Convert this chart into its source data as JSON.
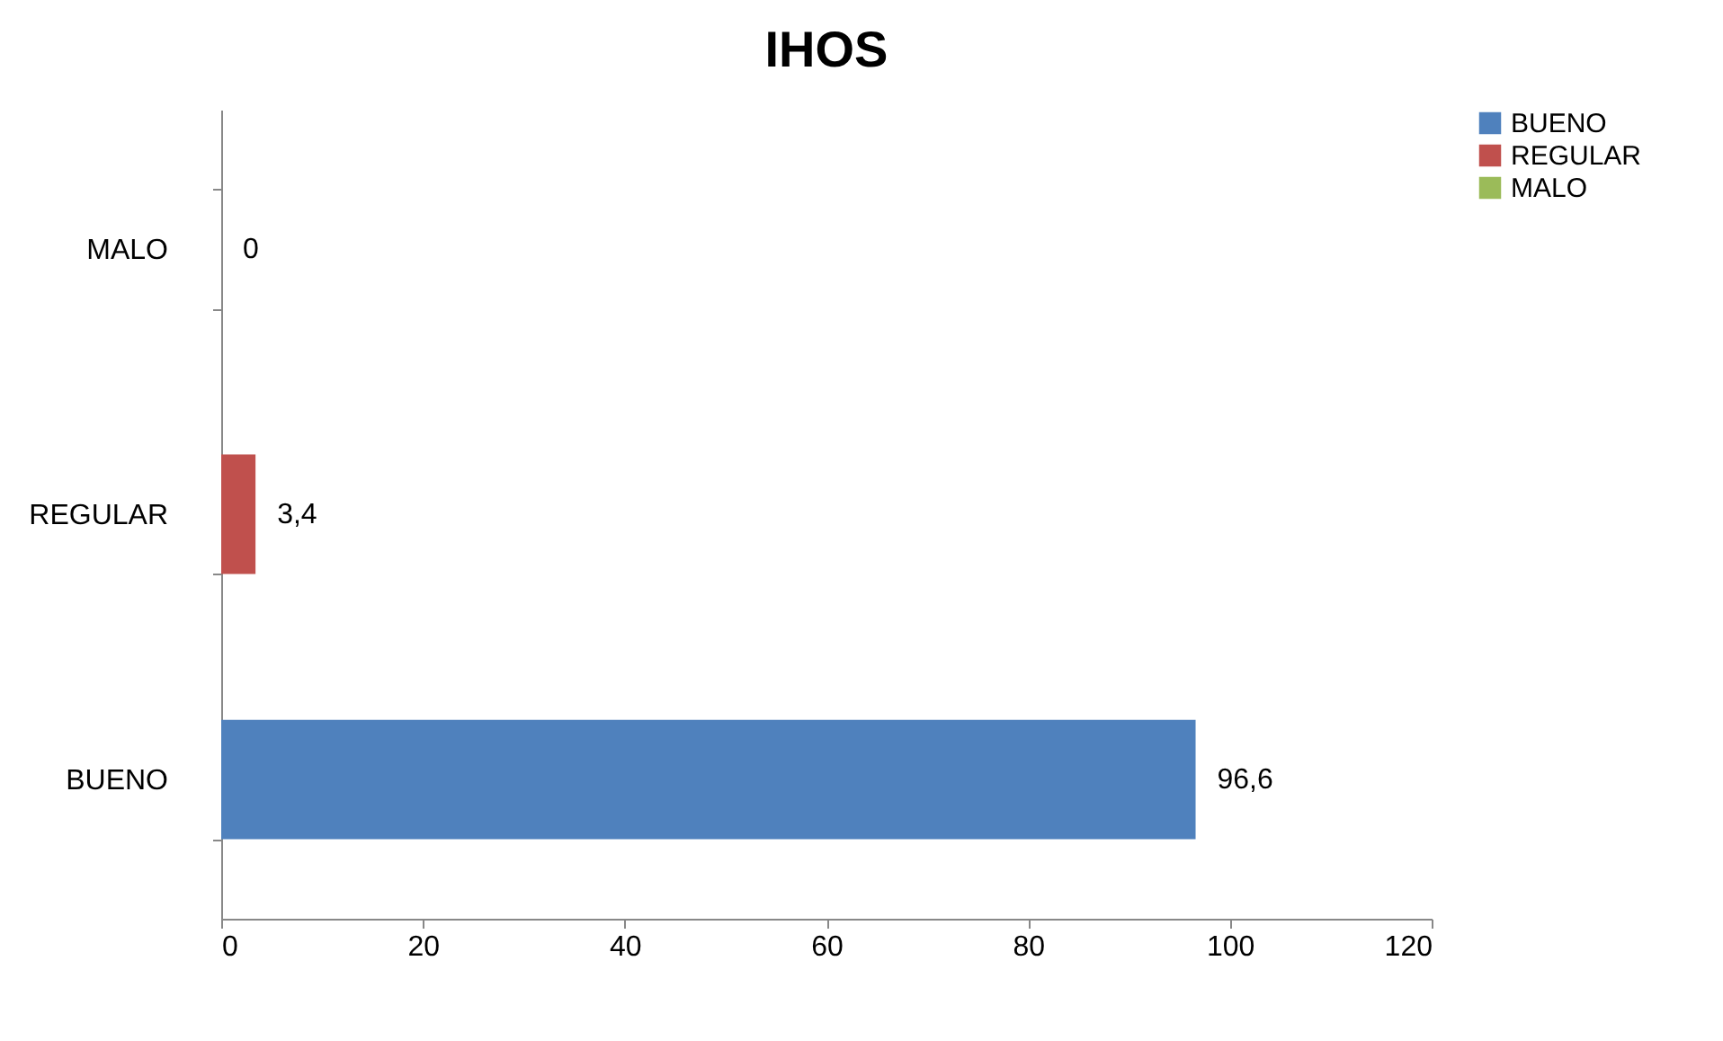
{
  "chart_data": {
    "type": "bar",
    "orientation": "horizontal",
    "title": "IHOS",
    "categories": [
      "MALO",
      "REGULAR",
      "BUENO"
    ],
    "series": [
      {
        "name": "BUENO",
        "color": "#4f81bd",
        "values": [
          null,
          null,
          96.6
        ],
        "value_labels": [
          null,
          null,
          "96,6"
        ]
      },
      {
        "name": "REGULAR",
        "color": "#c0504d",
        "values": [
          null,
          3.4,
          null
        ],
        "value_labels": [
          null,
          "3,4",
          null
        ]
      },
      {
        "name": "MALO",
        "color": "#9bbb59",
        "values": [
          0,
          null,
          null
        ],
        "value_labels": [
          "0",
          null,
          null
        ]
      }
    ],
    "xlim": [
      0,
      120
    ],
    "xticks": [
      0,
      20,
      40,
      60,
      80,
      100,
      120
    ],
    "grid": false,
    "legend": "right"
  }
}
